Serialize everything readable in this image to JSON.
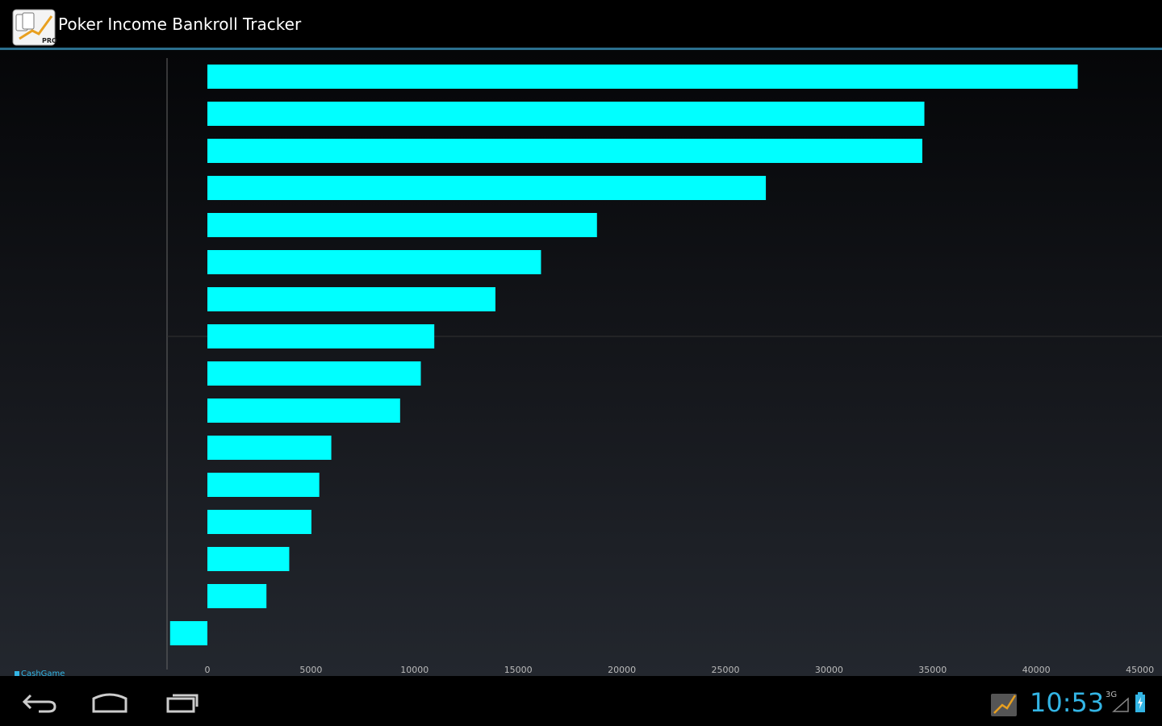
{
  "app": {
    "title": "Poker Income Bankroll Tracker",
    "icon": "poker-cards-chart-icon",
    "icon_badge": "PRO"
  },
  "colors": {
    "bar": "#00ffff",
    "accent": "#33b5e5",
    "divider": "#2b6f8e"
  },
  "chart_data": {
    "type": "bar",
    "orientation": "horizontal",
    "categories": [
      "",
      "",
      "",
      "",
      "",
      "",
      "",
      "",
      "",
      "",
      "",
      "",
      "",
      "",
      "",
      ""
    ],
    "series": [
      {
        "name": "CashGame",
        "values": [
          42000,
          34600,
          34500,
          26950,
          18800,
          16100,
          13900,
          10950,
          10300,
          9300,
          5980,
          5400,
          5020,
          3950,
          2850,
          -1800
        ]
      }
    ],
    "xticks": [
      "0",
      "5000",
      "10000",
      "15000",
      "20000",
      "25000",
      "30000",
      "35000",
      "40000",
      "45000"
    ],
    "xlim": [
      -1800,
      45000
    ],
    "grid": false,
    "legend": "bottom-left"
  },
  "status_bar": {
    "time": "10:53",
    "signal_label": "3G",
    "icons": [
      "back-icon",
      "home-icon",
      "recent-apps-icon",
      "notification-icon",
      "signal-icon",
      "battery-icon"
    ]
  }
}
